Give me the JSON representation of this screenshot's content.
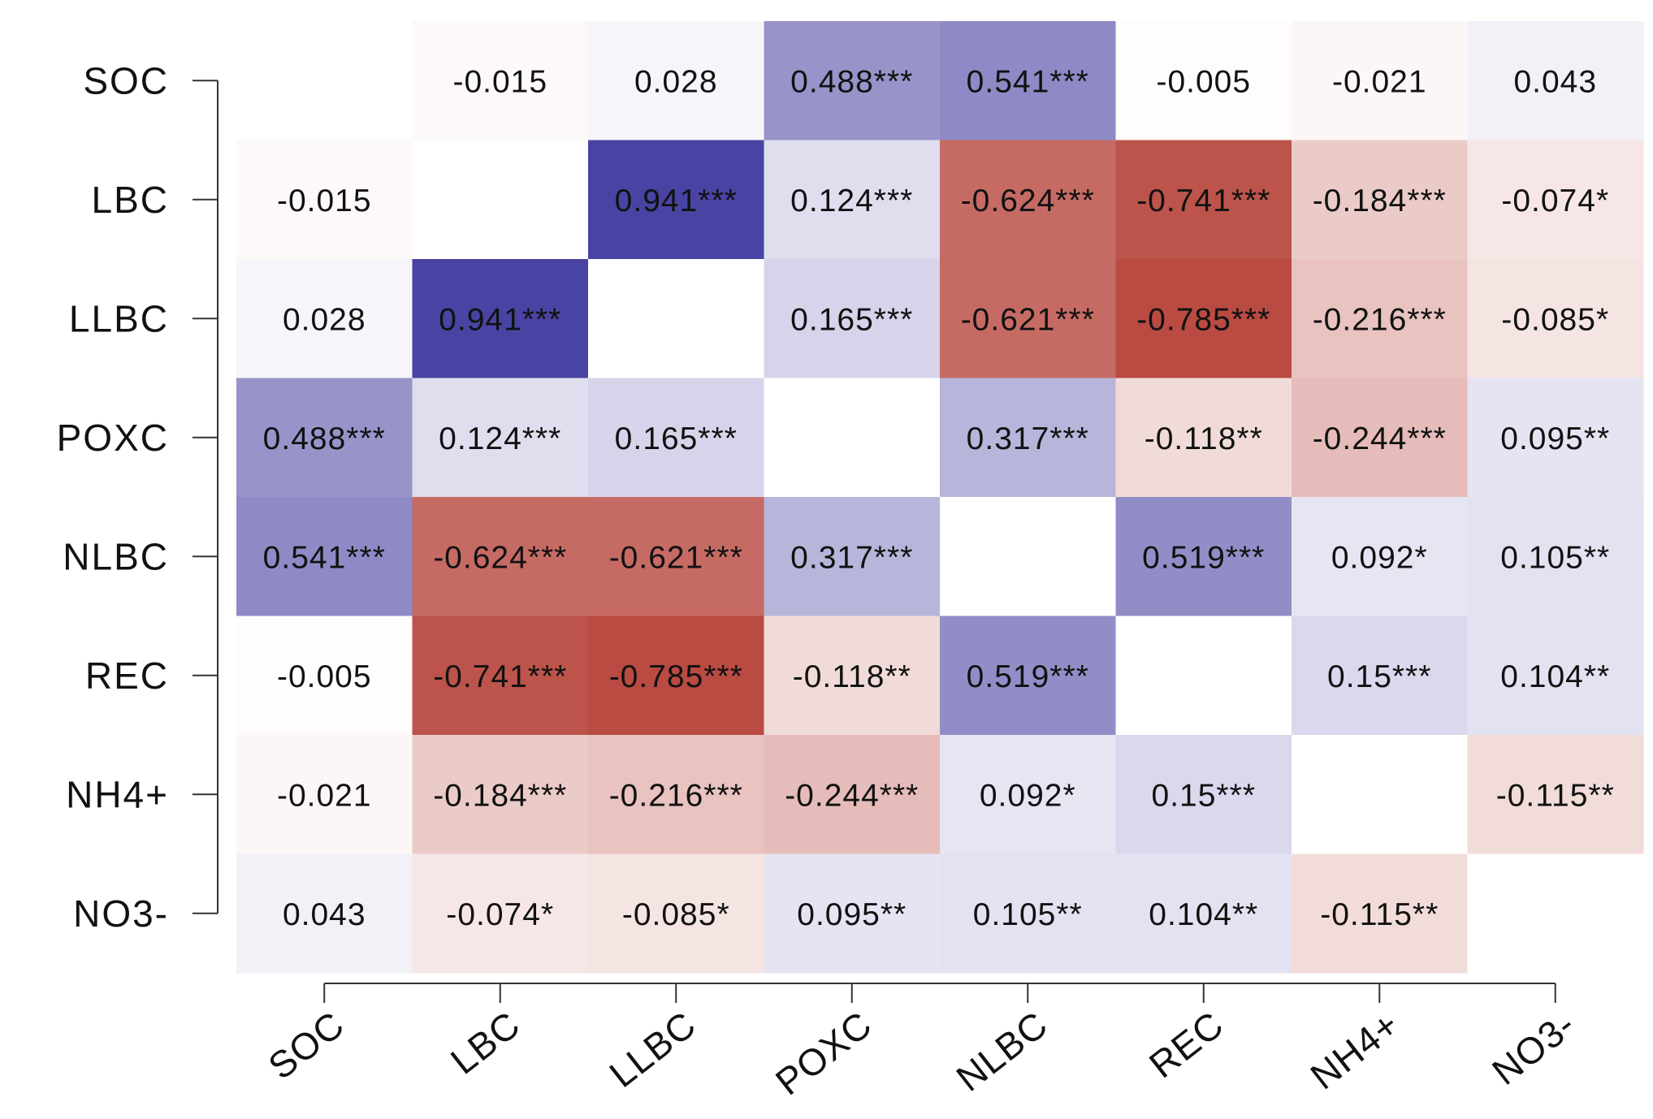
{
  "chart_data": {
    "type": "heatmap",
    "title": "",
    "xlabel": "",
    "ylabel": "",
    "labels": [
      "SOC",
      "LBC",
      "LLBC",
      "POXC",
      "NLBC",
      "REC",
      "NH4+",
      "NO3-"
    ],
    "values": [
      [
        null,
        -0.015,
        0.028,
        0.488,
        0.541,
        -0.005,
        -0.021,
        0.043
      ],
      [
        -0.015,
        null,
        0.941,
        0.124,
        -0.624,
        -0.741,
        -0.184,
        -0.074
      ],
      [
        0.028,
        0.941,
        null,
        0.165,
        -0.621,
        -0.785,
        -0.216,
        -0.085
      ],
      [
        0.488,
        0.124,
        0.165,
        null,
        0.317,
        -0.118,
        -0.244,
        0.095
      ],
      [
        0.541,
        -0.624,
        -0.621,
        0.317,
        null,
        0.519,
        0.092,
        0.105
      ],
      [
        -0.005,
        -0.741,
        -0.785,
        -0.118,
        0.519,
        null,
        0.15,
        0.104
      ],
      [
        -0.021,
        -0.184,
        -0.216,
        -0.244,
        0.092,
        0.15,
        null,
        -0.115
      ],
      [
        0.043,
        -0.074,
        -0.085,
        0.095,
        0.105,
        0.104,
        -0.115,
        null
      ]
    ],
    "cell_text": [
      [
        "",
        "-0.015",
        "0.028",
        "0.488***",
        "0.541***",
        "-0.005",
        "-0.021",
        "0.043"
      ],
      [
        "-0.015",
        "",
        "0.941***",
        "0.124***",
        "-0.624***",
        "-0.741***",
        "-0.184***",
        "-0.074*"
      ],
      [
        "0.028",
        "0.941***",
        "",
        "0.165***",
        "-0.621***",
        "-0.785***",
        "-0.216***",
        "-0.085*"
      ],
      [
        "0.488***",
        "0.124***",
        "0.165***",
        "",
        "0.317***",
        "-0.118**",
        "-0.244***",
        "0.095**"
      ],
      [
        "0.541***",
        "-0.624***",
        "-0.621***",
        "0.317***",
        "",
        "0.519***",
        "0.092*",
        "0.105**"
      ],
      [
        "-0.005",
        "-0.741***",
        "-0.785***",
        "-0.118**",
        "0.519***",
        "",
        "0.15***",
        "0.104**"
      ],
      [
        "-0.021",
        "-0.184***",
        "-0.216***",
        "-0.244***",
        "0.092*",
        "0.15***",
        "",
        "-0.115**"
      ],
      [
        "0.043",
        "-0.074*",
        "-0.085*",
        "0.095**",
        "0.105**",
        "0.104**",
        "-0.115**",
        ""
      ]
    ],
    "color_scale": {
      "negative": "#b8483f",
      "zero": "#ffffff",
      "positive": "#3f3a9e",
      "range": [
        -0.8,
        1.0
      ]
    }
  }
}
